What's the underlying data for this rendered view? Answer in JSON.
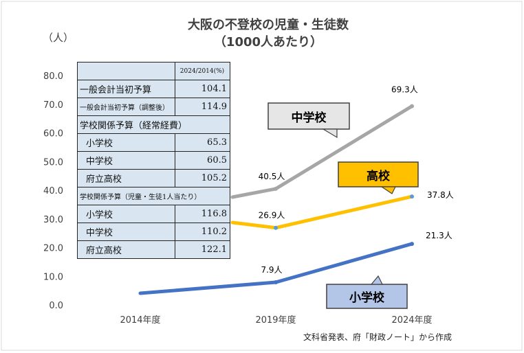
{
  "title_line1": "大阪の不登校の児童・生徒数",
  "title_line2": "（1000人あたり）",
  "unit_label": "（人）",
  "source_note": "文科省発表、府「財政ノート」から作成",
  "chart_data": {
    "type": "line",
    "categories": [
      "2014年度",
      "2019年度",
      "2024年度"
    ],
    "ylim": [
      0,
      80
    ],
    "yticks": [
      "0.0",
      "10.0",
      "20.0",
      "30.0",
      "40.0",
      "50.0",
      "60.0",
      "70.0",
      "80.0"
    ],
    "grid": false,
    "series": [
      {
        "name": "中学校",
        "color": "#a6a6a6",
        "values": [
          null,
          40.5,
          69.3
        ],
        "labels": [
          "",
          "40.5人",
          "69.3人"
        ]
      },
      {
        "name": "高校",
        "color": "#ffc000",
        "values": [
          null,
          26.9,
          37.8
        ],
        "labels": [
          "",
          "26.9人",
          "37.8人"
        ]
      },
      {
        "name": "小学校",
        "color": "#4472c4",
        "values": [
          null,
          7.9,
          21.3
        ],
        "labels": [
          "",
          "7.9人",
          "21.3人"
        ]
      }
    ]
  },
  "callouts": {
    "junior_high": "中学校",
    "high_school": "高校",
    "elementary": "小学校"
  },
  "callout_colors": {
    "junior_high_bg": "#e7e6e6",
    "high_school_bg": "#ffc000",
    "elementary_bg": "#b4c6e7"
  },
  "budget_table": {
    "header": "2024/2014(%)",
    "rows": [
      {
        "label": "一般会計当初予算",
        "value": "104.1"
      },
      {
        "label": "一般会計当初予算（調整後）",
        "value": "114.9"
      },
      {
        "label": "学校関係予算（経常経費）",
        "value": ""
      },
      {
        "label": "小学校",
        "value": "65.3"
      },
      {
        "label": "中学校",
        "value": "60.5"
      },
      {
        "label": "府立高校",
        "value": "105.2"
      },
      {
        "label": "学校関係予算（児童・生徒1人当たり）",
        "value": ""
      },
      {
        "label": "小学校",
        "value": "116.8"
      },
      {
        "label": "中学校",
        "value": "110.2"
      },
      {
        "label": "府立高校",
        "value": "122.1"
      }
    ]
  }
}
